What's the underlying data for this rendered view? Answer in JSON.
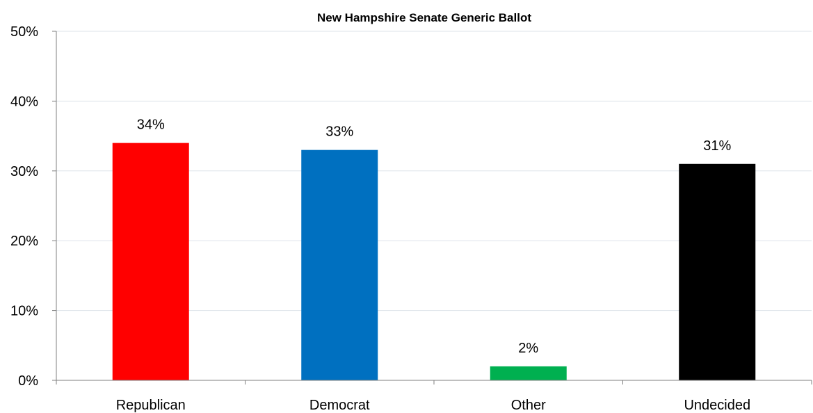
{
  "chart_data": {
    "type": "bar",
    "title": "New Hampshire Senate Generic Ballot",
    "xlabel": "",
    "ylabel": "",
    "categories": [
      "Republican",
      "Democrat",
      "Other",
      "Undecided"
    ],
    "values": [
      34,
      33,
      2,
      31
    ],
    "data_labels": [
      "34%",
      "33%",
      "2%",
      "31%"
    ],
    "colors": [
      "#ff0000",
      "#0070c0",
      "#00b050",
      "#000000"
    ],
    "ylim": [
      0,
      50
    ],
    "yticks": [
      0,
      10,
      20,
      30,
      40,
      50
    ],
    "ytick_labels": [
      "0%",
      "10%",
      "20%",
      "30%",
      "40%",
      "50%"
    ],
    "grid": true,
    "legend": "none"
  }
}
